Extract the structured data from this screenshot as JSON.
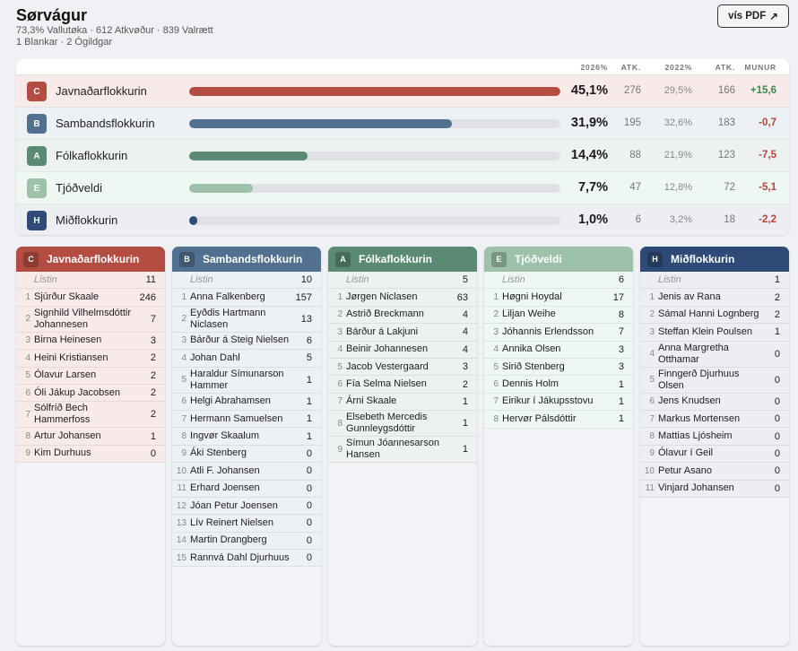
{
  "header": {
    "title": "Sørvágur",
    "line1": "73,3% Vallutøka · 612 Atkvøður · 839 Valrætt",
    "line2": "1 Blankar · 2 Ógildgar",
    "pdf_button": "vís PDF",
    "pdf_icon": "↗"
  },
  "summary": {
    "columns": {
      "pct2026": "2026%",
      "atk": "ATK.",
      "pct2022": "2022%",
      "atk2022": "ATK.",
      "diff": "MUNUR"
    },
    "max_pct": 45.1,
    "rows": [
      {
        "letter": "C",
        "name": "Javnaðarflokkurin",
        "pct_value": 45.1,
        "pct": "45,1%",
        "atk": "276",
        "pct2022": "29,5%",
        "atk2022": "166",
        "diff": "+15,6",
        "color": "#b34d42",
        "bg": "#f9eaea",
        "diff_color": "#3d8a4e"
      },
      {
        "letter": "B",
        "name": "Sambandsflokkurin",
        "pct_value": 31.9,
        "pct": "31,9%",
        "atk": "195",
        "pct2022": "32,6%",
        "atk2022": "183",
        "diff": "-0,7",
        "color": "#52708f",
        "bg": "#edf0f4",
        "diff_color": "#b8423a"
      },
      {
        "letter": "A",
        "name": "Fólkaflokkurin",
        "pct_value": 14.4,
        "pct": "14,4%",
        "atk": "88",
        "pct2022": "21,9%",
        "atk2022": "123",
        "diff": "-7,5",
        "color": "#5a8a74",
        "bg": "#edf2f0",
        "diff_color": "#b8423a"
      },
      {
        "letter": "E",
        "name": "Tjóðveldi",
        "pct_value": 7.7,
        "pct": "7,7%",
        "atk": "47",
        "pct2022": "12,8%",
        "atk2022": "72",
        "diff": "-5,1",
        "color": "#9dc2a9",
        "bg": "#eef7f1",
        "diff_color": "#b8423a"
      },
      {
        "letter": "H",
        "name": "Miðflokkurin",
        "pct_value": 1.0,
        "pct": "1,0%",
        "atk": "6",
        "pct2022": "3,2%",
        "atk2022": "18",
        "diff": "-2,2",
        "color": "#2e4b78",
        "bg": "#edeef3",
        "diff_color": "#b8423a"
      }
    ]
  },
  "cards": [
    {
      "letter": "C",
      "name": "Javnaðarflokkurin",
      "color": "#b34d42",
      "row_bg": "#f9eaea",
      "listin_label": "Listin",
      "listin_votes": "11",
      "candidates": [
        {
          "n": "1",
          "name": "Sjúrður Skaale",
          "votes": "246"
        },
        {
          "n": "2",
          "name": "Signhild Vilhelmsdóttir Johannesen",
          "votes": "7"
        },
        {
          "n": "3",
          "name": "Birna Heinesen",
          "votes": "3"
        },
        {
          "n": "4",
          "name": "Heini Kristiansen",
          "votes": "2"
        },
        {
          "n": "5",
          "name": "Ólavur Larsen",
          "votes": "2"
        },
        {
          "n": "6",
          "name": "Óli Jákup Jacobsen",
          "votes": "2"
        },
        {
          "n": "7",
          "name": "Sólfríð Bech Hammerfoss",
          "votes": "2"
        },
        {
          "n": "8",
          "name": "Artur Johansen",
          "votes": "1"
        },
        {
          "n": "9",
          "name": "Kim Durhuus",
          "votes": "0"
        }
      ]
    },
    {
      "letter": "B",
      "name": "Sambandsflokkurin",
      "color": "#52708f",
      "row_bg": "#edf0f4",
      "listin_label": "Listin",
      "listin_votes": "10",
      "candidates": [
        {
          "n": "1",
          "name": "Anna Falkenberg",
          "votes": "157"
        },
        {
          "n": "2",
          "name": "Eyðdis Hartmann Niclasen",
          "votes": "13"
        },
        {
          "n": "3",
          "name": "Bárður á Steig Nielsen",
          "votes": "6"
        },
        {
          "n": "4",
          "name": "Johan Dahl",
          "votes": "5"
        },
        {
          "n": "5",
          "name": "Haraldur Símunarson Hammer",
          "votes": "1"
        },
        {
          "n": "6",
          "name": "Helgi Abrahamsen",
          "votes": "1"
        },
        {
          "n": "7",
          "name": "Hermann Samuelsen",
          "votes": "1"
        },
        {
          "n": "8",
          "name": "Ingvør Skaalum",
          "votes": "1"
        },
        {
          "n": "9",
          "name": "Áki Stenberg",
          "votes": "0"
        },
        {
          "n": "10",
          "name": "Atli F. Johansen",
          "votes": "0"
        },
        {
          "n": "11",
          "name": "Erhard Joensen",
          "votes": "0"
        },
        {
          "n": "12",
          "name": "Jóan Petur Joensen",
          "votes": "0"
        },
        {
          "n": "13",
          "name": "Lív Reinert Nielsen",
          "votes": "0"
        },
        {
          "n": "14",
          "name": "Martin Drangberg",
          "votes": "0"
        },
        {
          "n": "15",
          "name": "Rannvá Dahl Djurhuus",
          "votes": "0"
        }
      ]
    },
    {
      "letter": "A",
      "name": "Fólkaflokkurin",
      "color": "#5a8a74",
      "row_bg": "#edf2f0",
      "listin_label": "Listin",
      "listin_votes": "5",
      "candidates": [
        {
          "n": "1",
          "name": "Jørgen Niclasen",
          "votes": "63"
        },
        {
          "n": "2",
          "name": "Astrið Breckmann",
          "votes": "4"
        },
        {
          "n": "3",
          "name": "Bárður á Lakjuni",
          "votes": "4"
        },
        {
          "n": "4",
          "name": "Beinir Johannesen",
          "votes": "4"
        },
        {
          "n": "5",
          "name": "Jacob Vestergaard",
          "votes": "3"
        },
        {
          "n": "6",
          "name": "Fía Selma Nielsen",
          "votes": "2"
        },
        {
          "n": "7",
          "name": "Árni Skaale",
          "votes": "1"
        },
        {
          "n": "8",
          "name": "Elsebeth Mercedis Gunnleygsdóttir",
          "votes": "1"
        },
        {
          "n": "9",
          "name": "Símun Jóannesarson Hansen",
          "votes": "1"
        }
      ]
    },
    {
      "letter": "E",
      "name": "Tjóðveldi",
      "color": "#9dc2a9",
      "row_bg": "#eef7f1",
      "listin_label": "Listin",
      "listin_votes": "6",
      "candidates": [
        {
          "n": "1",
          "name": "Høgni Hoydal",
          "votes": "17"
        },
        {
          "n": "2",
          "name": "Liljan Weihe",
          "votes": "8"
        },
        {
          "n": "3",
          "name": "Jóhannis Erlendsson",
          "votes": "7"
        },
        {
          "n": "4",
          "name": "Annika Olsen",
          "votes": "3"
        },
        {
          "n": "5",
          "name": "Sirið Stenberg",
          "votes": "3"
        },
        {
          "n": "6",
          "name": "Dennis Holm",
          "votes": "1"
        },
        {
          "n": "7",
          "name": "Eirikur í Jákupsstovu",
          "votes": "1"
        },
        {
          "n": "8",
          "name": "Hervør Pálsdóttir",
          "votes": "1"
        }
      ]
    },
    {
      "letter": "H",
      "name": "Miðflokkurin",
      "color": "#2e4b78",
      "row_bg": "#edeef3",
      "listin_label": "Listin",
      "listin_votes": "1",
      "candidates": [
        {
          "n": "1",
          "name": "Jenis av Rana",
          "votes": "2"
        },
        {
          "n": "2",
          "name": "Sámal Hanni Lognberg",
          "votes": "2"
        },
        {
          "n": "3",
          "name": "Steffan Klein Poulsen",
          "votes": "1"
        },
        {
          "n": "4",
          "name": "Anna Margretha Otthamar",
          "votes": "0"
        },
        {
          "n": "5",
          "name": "Finngerð Djurhuus Olsen",
          "votes": "0"
        },
        {
          "n": "6",
          "name": "Jens Knudsen",
          "votes": "0"
        },
        {
          "n": "7",
          "name": "Markus Mortensen",
          "votes": "0"
        },
        {
          "n": "8",
          "name": "Mattias Ljósheim",
          "votes": "0"
        },
        {
          "n": "9",
          "name": "Ólavur í Geil",
          "votes": "0"
        },
        {
          "n": "10",
          "name": "Petur Asano",
          "votes": "0"
        },
        {
          "n": "11",
          "name": "Vinjard Johansen",
          "votes": "0"
        }
      ]
    }
  ]
}
